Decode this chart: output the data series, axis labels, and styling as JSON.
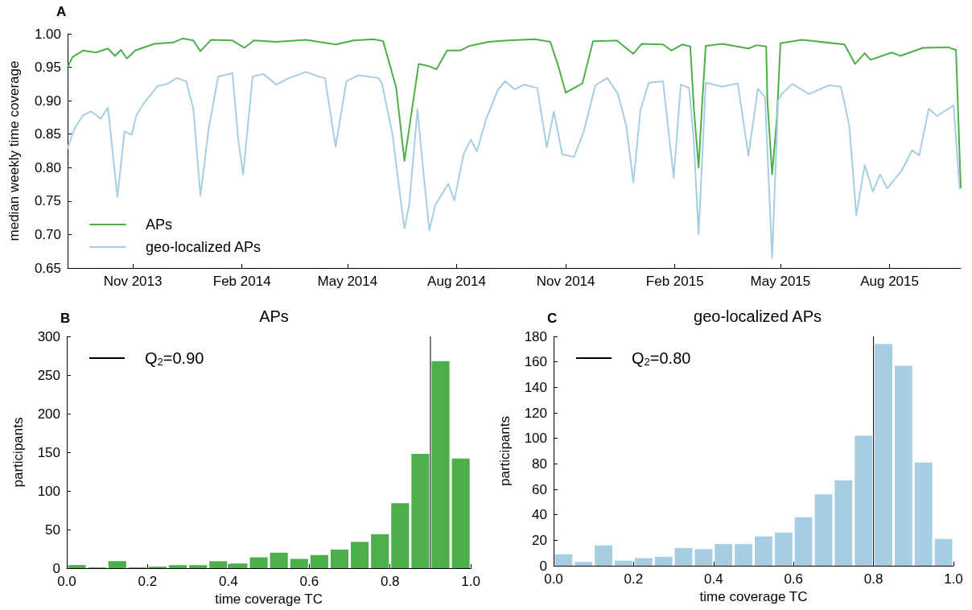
{
  "chart_data": [
    {
      "type": "line",
      "ylabel": "median weekly time coverage",
      "annotations": [
        "A"
      ],
      "legend": "bottom left",
      "marker": "none",
      "line_style": "solid",
      "grid": false,
      "xlim": [
        "2013-09-07",
        "2015-09-30"
      ],
      "xticks": [
        {
          "value": "2013-11-01",
          "label": "Nov 2013"
        },
        {
          "value": "2014-02-01",
          "label": "Feb 2014"
        },
        {
          "value": "2014-05-01",
          "label": "May 2014"
        },
        {
          "value": "2014-08-01",
          "label": "Aug 2014"
        },
        {
          "value": "2014-11-01",
          "label": "Nov 2014"
        },
        {
          "value": "2015-02-01",
          "label": "Feb 2015"
        },
        {
          "value": "2015-05-01",
          "label": "May 2015"
        },
        {
          "value": "2015-08-01",
          "label": "Aug 2015"
        }
      ],
      "ylim": [
        0.65,
        1.0
      ],
      "yticks": [
        {
          "value": 0.65,
          "label": "0.65"
        },
        {
          "value": 0.7,
          "label": "0.70"
        },
        {
          "value": 0.75,
          "label": "0.75"
        },
        {
          "value": 0.8,
          "label": "0.80"
        },
        {
          "value": 0.85,
          "label": "0.85"
        },
        {
          "value": 0.9,
          "label": "0.90"
        },
        {
          "value": 0.95,
          "label": "0.95"
        },
        {
          "value": 1.0,
          "label": "1.00"
        }
      ],
      "series": [
        {
          "name": "APs",
          "color": "#4daf4a",
          "x": [
            "2013-09-07",
            "2013-09-11",
            "2013-09-20",
            "2013-10-01",
            "2013-10-11",
            "2013-10-17",
            "2013-10-22",
            "2013-10-27",
            "2013-11-03",
            "2013-11-19",
            "2013-12-05",
            "2013-12-13",
            "2013-12-22",
            "2013-12-28",
            "2014-01-06",
            "2014-01-24",
            "2014-02-03",
            "2014-02-11",
            "2014-03-02",
            "2014-03-27",
            "2014-04-21",
            "2014-05-06",
            "2014-05-23",
            "2014-05-31",
            "2014-06-11",
            "2014-06-18",
            "2014-06-30",
            "2014-07-08",
            "2014-07-15",
            "2014-07-24",
            "2014-07-30",
            "2014-08-04",
            "2014-08-12",
            "2014-08-28",
            "2014-09-13",
            "2014-10-06",
            "2014-10-19",
            "2014-10-26",
            "2014-11-01",
            "2014-11-15",
            "2014-11-24",
            "2014-12-14",
            "2014-12-28",
            "2015-01-04",
            "2015-01-22",
            "2015-01-29",
            "2015-02-07",
            "2015-02-14",
            "2015-02-17",
            "2015-02-21",
            "2015-02-24",
            "2015-02-27",
            "2015-03-13",
            "2015-04-04",
            "2015-04-11",
            "2015-04-19",
            "2015-04-20",
            "2015-04-24",
            "2015-04-28",
            "2015-05-01",
            "2015-05-19",
            "2015-06-24",
            "2015-07-03",
            "2015-07-11",
            "2015-07-16",
            "2015-08-03",
            "2015-08-10",
            "2015-08-29",
            "2015-09-19",
            "2015-09-26",
            "2015-09-30"
          ],
          "values": [
            0.95,
            0.965,
            0.975,
            0.972,
            0.978,
            0.967,
            0.976,
            0.963,
            0.975,
            0.985,
            0.987,
            0.993,
            0.99,
            0.974,
            0.991,
            0.99,
            0.979,
            0.99,
            0.988,
            0.991,
            0.984,
            0.99,
            0.992,
            0.989,
            0.92,
            0.81,
            0.955,
            0.952,
            0.947,
            0.975,
            0.975,
            0.975,
            0.982,
            0.988,
            0.99,
            0.992,
            0.988,
            0.95,
            0.912,
            0.926,
            0.989,
            0.99,
            0.97,
            0.985,
            0.984,
            0.975,
            0.984,
            0.981,
            0.889,
            0.8,
            0.896,
            0.982,
            0.985,
            0.978,
            0.983,
            0.981,
            0.9,
            0.79,
            0.874,
            0.986,
            0.991,
            0.984,
            0.955,
            0.971,
            0.961,
            0.972,
            0.967,
            0.979,
            0.98,
            0.976,
            0.77
          ]
        },
        {
          "name": "geo-localized APs",
          "color": "#a6cee3",
          "x": [
            "2013-09-07",
            "2013-09-13",
            "2013-09-20",
            "2013-09-27",
            "2013-10-05",
            "2013-10-11",
            "2013-10-19",
            "2013-10-25",
            "2013-10-31",
            "2013-11-04",
            "2013-11-11",
            "2013-11-22",
            "2013-11-30",
            "2013-12-08",
            "2013-12-16",
            "2013-12-22",
            "2013-12-28",
            "2014-01-04",
            "2014-01-12",
            "2014-01-24",
            "2014-01-29",
            "2014-02-02",
            "2014-02-10",
            "2014-02-19",
            "2014-03-02",
            "2014-03-13",
            "2014-03-27",
            "2014-04-07",
            "2014-04-12",
            "2014-04-21",
            "2014-04-30",
            "2014-05-10",
            "2014-05-27",
            "2014-05-30",
            "2014-06-08",
            "2014-06-14",
            "2014-06-18",
            "2014-06-22",
            "2014-06-29",
            "2014-07-03",
            "2014-07-09",
            "2014-07-14",
            "2014-07-25",
            "2014-07-30",
            "2014-08-07",
            "2014-08-13",
            "2014-08-18",
            "2014-08-26",
            "2014-09-05",
            "2014-09-11",
            "2014-09-19",
            "2014-09-27",
            "2014-10-08",
            "2014-10-16",
            "2014-10-22",
            "2014-10-29",
            "2014-11-08",
            "2014-11-16",
            "2014-11-26",
            "2014-12-06",
            "2014-12-15",
            "2014-12-22",
            "2014-12-28",
            "2015-01-03",
            "2015-01-10",
            "2015-01-22",
            "2015-01-31",
            "2015-02-06",
            "2015-02-13",
            "2015-02-17",
            "2015-02-21",
            "2015-02-27",
            "2015-03-13",
            "2015-03-26",
            "2015-04-04",
            "2015-04-12",
            "2015-04-18",
            "2015-04-24",
            "2015-04-29",
            "2015-05-02",
            "2015-05-11",
            "2015-05-25",
            "2015-06-11",
            "2015-06-21",
            "2015-06-28",
            "2015-07-04",
            "2015-07-11",
            "2015-07-18",
            "2015-07-24",
            "2015-07-30",
            "2015-08-11",
            "2015-08-20",
            "2015-08-26",
            "2015-09-03",
            "2015-09-10",
            "2015-09-24",
            "2015-09-29"
          ],
          "values": [
            0.829,
            0.859,
            0.878,
            0.884,
            0.873,
            0.89,
            0.756,
            0.854,
            0.849,
            0.878,
            0.898,
            0.922,
            0.925,
            0.934,
            0.929,
            0.888,
            0.758,
            0.859,
            0.936,
            0.941,
            0.84,
            0.79,
            0.936,
            0.94,
            0.924,
            0.934,
            0.943,
            0.936,
            0.934,
            0.831,
            0.929,
            0.938,
            0.934,
            0.926,
            0.849,
            0.763,
            0.709,
            0.744,
            0.887,
            0.811,
            0.706,
            0.744,
            0.776,
            0.751,
            0.821,
            0.842,
            0.824,
            0.873,
            0.917,
            0.929,
            0.917,
            0.924,
            0.919,
            0.83,
            0.884,
            0.82,
            0.816,
            0.853,
            0.923,
            0.934,
            0.91,
            0.863,
            0.778,
            0.886,
            0.927,
            0.929,
            0.785,
            0.924,
            0.919,
            0.839,
            0.7,
            0.927,
            0.921,
            0.926,
            0.818,
            0.918,
            0.905,
            0.665,
            0.9,
            0.91,
            0.925,
            0.91,
            0.923,
            0.921,
            0.863,
            0.729,
            0.804,
            0.764,
            0.79,
            0.769,
            0.795,
            0.826,
            0.818,
            0.888,
            0.877,
            0.893,
            0.769
          ]
        }
      ]
    },
    {
      "type": "histogram",
      "title": "APs",
      "xlabel": "time coverage TC",
      "ylabel": "participants",
      "annotations": [
        "B"
      ],
      "legend": "top left",
      "grid": false,
      "color": "#4daf4a",
      "bins": [
        0,
        0.05,
        0.1,
        0.15,
        0.2,
        0.25,
        0.3,
        0.35,
        0.4,
        0.45,
        0.5,
        0.55,
        0.6,
        0.65,
        0.7,
        0.75,
        0.8,
        0.85,
        0.9,
        0.95,
        1.0
      ],
      "values": [
        4,
        1,
        9,
        1,
        2,
        4,
        4,
        9,
        6,
        14,
        20,
        12,
        17,
        24,
        34,
        44,
        84,
        148,
        268,
        142
      ],
      "xlim": [
        0,
        1.0
      ],
      "xticks": [
        {
          "value": 0,
          "label": "0.0"
        },
        {
          "value": 0.2,
          "label": "0.2"
        },
        {
          "value": 0.4,
          "label": "0.4"
        },
        {
          "value": 0.6,
          "label": "0.6"
        },
        {
          "value": 0.8,
          "label": "0.8"
        },
        {
          "value": 1.0,
          "label": "1.0"
        }
      ],
      "ylim": [
        0,
        300
      ],
      "yticks": [
        0,
        50,
        100,
        150,
        200,
        250,
        300
      ],
      "ref_lines": [
        {
          "axis": "x",
          "value": 0.9,
          "label": "Q$_{2}$=0.90",
          "color": "#000000"
        }
      ]
    },
    {
      "type": "histogram",
      "title": "geo-localized APs",
      "xlabel": "time coverage TC",
      "ylabel": "participants",
      "annotations": [
        "C"
      ],
      "legend": "top left",
      "grid": false,
      "color": "#a6cee3",
      "bins": [
        0,
        0.05,
        0.1,
        0.15,
        0.2,
        0.25,
        0.3,
        0.35,
        0.4,
        0.45,
        0.5,
        0.55,
        0.6,
        0.65,
        0.7,
        0.75,
        0.8,
        0.85,
        0.9,
        0.95,
        1.0
      ],
      "values": [
        9,
        3,
        16,
        4,
        6,
        7,
        14,
        13,
        17,
        17,
        23,
        26,
        38,
        56,
        67,
        102,
        174,
        157,
        81,
        21
      ],
      "xlim": [
        0,
        1.0
      ],
      "xticks": [
        {
          "value": 0,
          "label": "0.0"
        },
        {
          "value": 0.2,
          "label": "0.2"
        },
        {
          "value": 0.4,
          "label": "0.4"
        },
        {
          "value": 0.6,
          "label": "0.6"
        },
        {
          "value": 0.8,
          "label": "0.8"
        },
        {
          "value": 1.0,
          "label": "1.0"
        }
      ],
      "ylim": [
        0,
        180
      ],
      "yticks": [
        0,
        20,
        40,
        60,
        80,
        100,
        120,
        140,
        160,
        180
      ],
      "ref_lines": [
        {
          "axis": "x",
          "value": 0.8,
          "label": "Q$_{2}$=0.80",
          "color": "#000000"
        }
      ]
    }
  ]
}
